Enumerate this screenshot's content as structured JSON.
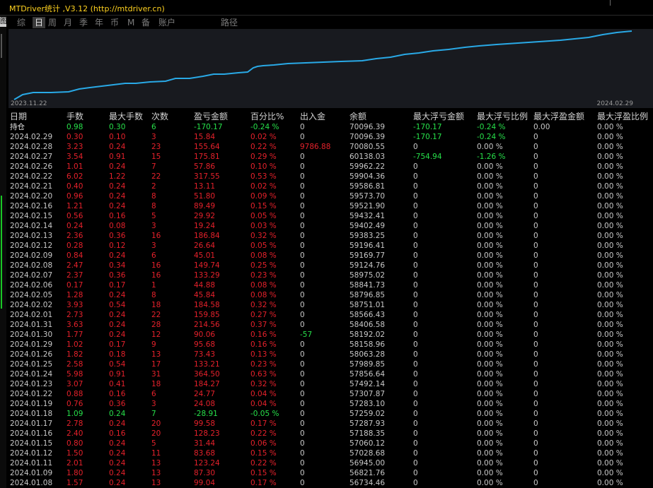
{
  "window": {
    "title": "MTDriver统计 ,V3.12 (http://mtdriver.cn)"
  },
  "side": {
    "glyph": "图"
  },
  "toolbar": {
    "items": [
      "综",
      "日",
      "周",
      "月",
      "季",
      "年",
      "币",
      "M",
      "备",
      "账户",
      "路径"
    ],
    "active_index": 1
  },
  "chart": {
    "x_start_label": "2023.11.22",
    "x_end_label": "2024.02.29",
    "line_color": "#29a9e6"
  },
  "table": {
    "columns": [
      "日期",
      "手数",
      "最大手数",
      "次数",
      "盈亏金额",
      "百分比%",
      "出入金",
      "余额",
      "最大浮亏金额",
      "最大浮亏比例",
      "最大浮盈金额",
      "最大浮盈比例"
    ],
    "summary": [
      "持仓",
      "0.98",
      "0.30",
      "6",
      "-170.17",
      "-0.24 %",
      "0",
      "70096.39",
      "-170.17",
      "-0.24 %",
      "0.00",
      "0.00 %"
    ],
    "rows": [
      [
        "2024.02.29",
        "0.30",
        "0.10",
        "3",
        "15.84",
        "0.02 %",
        "0",
        "70096.39",
        "-170.17",
        "-0.24 %",
        "0",
        "0.00 %"
      ],
      [
        "2024.02.28",
        "3.23",
        "0.24",
        "23",
        "155.64",
        "0.22 %",
        "9786.88",
        "70080.55",
        "0",
        "0.00 %",
        "0",
        "0.00 %"
      ],
      [
        "2024.02.27",
        "3.54",
        "0.91",
        "15",
        "175.81",
        "0.29 %",
        "0",
        "60138.03",
        "-754.94",
        "-1.26 %",
        "0",
        "0.00 %"
      ],
      [
        "2024.02.26",
        "1.01",
        "0.24",
        "7",
        "57.86",
        "0.10 %",
        "0",
        "59962.22",
        "0",
        "0.00 %",
        "0",
        "0.00 %"
      ],
      [
        "2024.02.22",
        "6.02",
        "1.22",
        "22",
        "317.55",
        "0.53 %",
        "0",
        "59904.36",
        "0",
        "0.00 %",
        "0",
        "0.00 %"
      ],
      [
        "2024.02.21",
        "0.40",
        "0.24",
        "2",
        "13.11",
        "0.02 %",
        "0",
        "59586.81",
        "0",
        "0.00 %",
        "0",
        "0.00 %"
      ],
      [
        "2024.02.20",
        "0.96",
        "0.24",
        "8",
        "51.80",
        "0.09 %",
        "0",
        "59573.70",
        "0",
        "0.00 %",
        "0",
        "0.00 %"
      ],
      [
        "2024.02.16",
        "1.21",
        "0.24",
        "8",
        "89.49",
        "0.15 %",
        "0",
        "59521.90",
        "0",
        "0.00 %",
        "0",
        "0.00 %"
      ],
      [
        "2024.02.15",
        "0.56",
        "0.16",
        "5",
        "29.92",
        "0.05 %",
        "0",
        "59432.41",
        "0",
        "0.00 %",
        "0",
        "0.00 %"
      ],
      [
        "2024.02.14",
        "0.24",
        "0.08",
        "3",
        "19.24",
        "0.03 %",
        "0",
        "59402.49",
        "0",
        "0.00 %",
        "0",
        "0.00 %"
      ],
      [
        "2024.02.13",
        "2.36",
        "0.36",
        "16",
        "186.84",
        "0.32 %",
        "0",
        "59383.25",
        "0",
        "0.00 %",
        "0",
        "0.00 %"
      ],
      [
        "2024.02.12",
        "0.28",
        "0.12",
        "3",
        "26.64",
        "0.05 %",
        "0",
        "59196.41",
        "0",
        "0.00 %",
        "0",
        "0.00 %"
      ],
      [
        "2024.02.09",
        "0.84",
        "0.24",
        "6",
        "45.01",
        "0.08 %",
        "0",
        "59169.77",
        "0",
        "0.00 %",
        "0",
        "0.00 %"
      ],
      [
        "2024.02.08",
        "2.47",
        "0.34",
        "16",
        "149.74",
        "0.25 %",
        "0",
        "59124.76",
        "0",
        "0.00 %",
        "0",
        "0.00 %"
      ],
      [
        "2024.02.07",
        "2.37",
        "0.36",
        "16",
        "133.29",
        "0.23 %",
        "0",
        "58975.02",
        "0",
        "0.00 %",
        "0",
        "0.00 %"
      ],
      [
        "2024.02.06",
        "0.17",
        "0.17",
        "1",
        "44.88",
        "0.08 %",
        "0",
        "58841.73",
        "0",
        "0.00 %",
        "0",
        "0.00 %"
      ],
      [
        "2024.02.05",
        "1.28",
        "0.24",
        "8",
        "45.84",
        "0.08 %",
        "0",
        "58796.85",
        "0",
        "0.00 %",
        "0",
        "0.00 %"
      ],
      [
        "2024.02.02",
        "3.93",
        "0.54",
        "18",
        "184.58",
        "0.32 %",
        "0",
        "58751.01",
        "0",
        "0.00 %",
        "0",
        "0.00 %"
      ],
      [
        "2024.02.01",
        "2.73",
        "0.24",
        "22",
        "159.85",
        "0.27 %",
        "0",
        "58566.43",
        "0",
        "0.00 %",
        "0",
        "0.00 %"
      ],
      [
        "2024.01.31",
        "3.63",
        "0.24",
        "28",
        "214.56",
        "0.37 %",
        "0",
        "58406.58",
        "0",
        "0.00 %",
        "0",
        "0.00 %"
      ],
      [
        "2024.01.30",
        "1.77",
        "0.24",
        "12",
        "90.06",
        "0.16 %",
        "-57",
        "58192.02",
        "0",
        "0.00 %",
        "0",
        "0.00 %"
      ],
      [
        "2024.01.29",
        "1.02",
        "0.17",
        "9",
        "95.68",
        "0.16 %",
        "0",
        "58158.96",
        "0",
        "0.00 %",
        "0",
        "0.00 %"
      ],
      [
        "2024.01.26",
        "1.82",
        "0.18",
        "13",
        "73.43",
        "0.13 %",
        "0",
        "58063.28",
        "0",
        "0.00 %",
        "0",
        "0.00 %"
      ],
      [
        "2024.01.25",
        "2.58",
        "0.54",
        "17",
        "133.21",
        "0.23 %",
        "0",
        "57989.85",
        "0",
        "0.00 %",
        "0",
        "0.00 %"
      ],
      [
        "2024.01.24",
        "5.98",
        "0.91",
        "31",
        "364.50",
        "0.63 %",
        "0",
        "57856.64",
        "0",
        "0.00 %",
        "0",
        "0.00 %"
      ],
      [
        "2024.01.23",
        "3.07",
        "0.41",
        "18",
        "184.27",
        "0.32 %",
        "0",
        "57492.14",
        "0",
        "0.00 %",
        "0",
        "0.00 %"
      ],
      [
        "2024.01.22",
        "0.88",
        "0.16",
        "6",
        "24.77",
        "0.04 %",
        "0",
        "57307.87",
        "0",
        "0.00 %",
        "0",
        "0.00 %"
      ],
      [
        "2024.01.19",
        "0.76",
        "0.36",
        "3",
        "24.08",
        "0.04 %",
        "0",
        "57283.10",
        "0",
        "0.00 %",
        "0",
        "0.00 %"
      ],
      [
        "2024.01.18",
        "1.09",
        "0.24",
        "7",
        "-28.91",
        "-0.05 %",
        "0",
        "57259.02",
        "0",
        "0.00 %",
        "0",
        "0.00 %"
      ],
      [
        "2024.01.17",
        "2.78",
        "0.24",
        "20",
        "99.58",
        "0.17 %",
        "0",
        "57287.93",
        "0",
        "0.00 %",
        "0",
        "0.00 %"
      ],
      [
        "2024.01.16",
        "2.40",
        "0.16",
        "20",
        "128.23",
        "0.22 %",
        "0",
        "57188.35",
        "0",
        "0.00 %",
        "0",
        "0.00 %"
      ],
      [
        "2024.01.15",
        "0.80",
        "0.24",
        "5",
        "31.44",
        "0.06 %",
        "0",
        "57060.12",
        "0",
        "0.00 %",
        "0",
        "0.00 %"
      ],
      [
        "2024.01.12",
        "1.50",
        "0.24",
        "11",
        "83.68",
        "0.15 %",
        "0",
        "57028.68",
        "0",
        "0.00 %",
        "0",
        "0.00 %"
      ],
      [
        "2024.01.11",
        "2.01",
        "0.24",
        "13",
        "123.24",
        "0.22 %",
        "0",
        "56945.00",
        "0",
        "0.00 %",
        "0",
        "0.00 %"
      ],
      [
        "2024.01.09",
        "1.80",
        "0.24",
        "13",
        "87.30",
        "0.15 %",
        "0",
        "56821.76",
        "0",
        "0.00 %",
        "0",
        "0.00 %"
      ],
      [
        "2024.01.08",
        "1.57",
        "0.24",
        "13",
        "99.04",
        "0.17 %",
        "0",
        "56734.46",
        "0",
        "0.00 %",
        "0",
        "0.00 %"
      ]
    ]
  },
  "colors": {
    "negative": "#27e04a",
    "positive": "#e5212b",
    "neutral": "#c8c8c8",
    "title": "#ffd21f"
  }
}
